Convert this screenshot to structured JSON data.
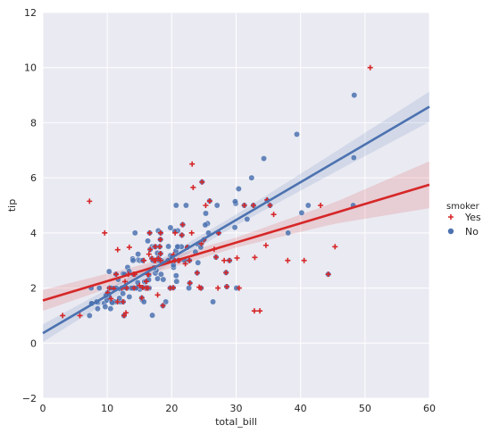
{
  "chart_data": {
    "type": "scatter",
    "title": "",
    "xlabel": "total_bill",
    "ylabel": "tip",
    "xlim": [
      0,
      60
    ],
    "ylim": [
      -2,
      12
    ],
    "xticks": [
      "0",
      "10",
      "20",
      "30",
      "40",
      "50",
      "60"
    ],
    "yticks": [
      "−2",
      "0",
      "2",
      "4",
      "6",
      "8",
      "10",
      "12"
    ],
    "grid": true,
    "background": "#eaeaf2",
    "legend": {
      "title": "smoker",
      "placement": "right",
      "entries": [
        "Yes",
        "No"
      ]
    },
    "series": [
      {
        "name": "Yes",
        "color": "#d62728",
        "marker": "plus",
        "regression": {
          "intercept": 1.55,
          "slope": 0.07,
          "ci_x": [
            0,
            15,
            30,
            45,
            60
          ],
          "ci_halfwidth": [
            0.38,
            0.22,
            0.18,
            0.38,
            0.85
          ]
        },
        "points": [
          [
            3.07,
            1.0
          ],
          [
            5.75,
            1.0
          ],
          [
            7.25,
            5.15
          ],
          [
            9.6,
            4.0
          ],
          [
            10.07,
            1.83
          ],
          [
            10.34,
            2.0
          ],
          [
            10.59,
            1.61
          ],
          [
            11.02,
            1.98
          ],
          [
            11.38,
            2.5
          ],
          [
            11.61,
            3.39
          ],
          [
            12.26,
            2.0
          ],
          [
            12.46,
            1.5
          ],
          [
            12.6,
            1.0
          ],
          [
            12.9,
            1.1
          ],
          [
            13.0,
            2.0
          ],
          [
            13.27,
            2.5
          ],
          [
            13.42,
            3.48
          ],
          [
            14.07,
            2.5
          ],
          [
            14.15,
            2.0
          ],
          [
            15.36,
            1.64
          ],
          [
            15.69,
            3.0
          ],
          [
            16.0,
            2.0
          ],
          [
            16.04,
            2.24
          ],
          [
            16.27,
            2.5
          ],
          [
            16.31,
            2.0
          ],
          [
            16.4,
            2.5
          ],
          [
            16.58,
            4.0
          ],
          [
            16.47,
            3.23
          ],
          [
            16.66,
            3.4
          ],
          [
            16.93,
            3.07
          ],
          [
            17.29,
            3.0
          ],
          [
            17.47,
            3.5
          ],
          [
            17.51,
            3.0
          ],
          [
            17.82,
            1.75
          ],
          [
            17.92,
            3.08
          ],
          [
            18.15,
            3.5
          ],
          [
            18.24,
            3.76
          ],
          [
            18.28,
            4.0
          ],
          [
            18.29,
            3.0
          ],
          [
            19.44,
            3.0
          ],
          [
            19.77,
            2.0
          ],
          [
            20.23,
            2.01
          ],
          [
            20.29,
            3.21
          ],
          [
            20.45,
            3.0
          ],
          [
            20.53,
            4.0
          ],
          [
            21.01,
            3.0
          ],
          [
            21.58,
            3.92
          ],
          [
            22.12,
            2.88
          ],
          [
            22.42,
            3.48
          ],
          [
            22.76,
            3.0
          ],
          [
            23.1,
            4.0
          ],
          [
            23.33,
            5.65
          ],
          [
            23.17,
            6.5
          ],
          [
            24.27,
            2.03
          ],
          [
            24.55,
            2.0
          ],
          [
            24.59,
            3.61
          ],
          [
            25.0,
            3.75
          ],
          [
            25.89,
            5.16
          ],
          [
            26.59,
            3.41
          ],
          [
            27.18,
            2.0
          ],
          [
            28.15,
            3.0
          ],
          [
            28.44,
            2.56
          ],
          [
            28.97,
            3.0
          ],
          [
            30.14,
            3.09
          ],
          [
            30.46,
            2.0
          ],
          [
            32.68,
            5.0
          ],
          [
            32.9,
            3.11
          ],
          [
            34.63,
            3.55
          ],
          [
            34.81,
            5.2
          ],
          [
            35.83,
            4.67
          ],
          [
            38.01,
            3.0
          ],
          [
            40.55,
            3.0
          ],
          [
            43.11,
            5.0
          ],
          [
            45.35,
            3.5
          ],
          [
            50.81,
            10.0
          ],
          [
            44.3,
            2.5
          ],
          [
            25.28,
            5.0
          ],
          [
            33.68,
            1.17
          ],
          [
            15.01,
            2.09
          ],
          [
            24.71,
            5.85
          ],
          [
            27.28,
            4.0
          ],
          [
            14.26,
            2.5
          ],
          [
            11.59,
            1.5
          ],
          [
            18.64,
            1.36
          ],
          [
            15.48,
            2.02
          ],
          [
            18.26,
            3.25
          ],
          [
            21.16,
            3.0
          ],
          [
            22.82,
            2.18
          ],
          [
            23.95,
            2.55
          ],
          [
            32.83,
            1.17
          ],
          [
            35.26,
            5.0
          ],
          [
            12.76,
            2.23
          ],
          [
            28.55,
            2.05
          ],
          [
            26.88,
            3.12
          ],
          [
            31.27,
            5.0
          ],
          [
            21.7,
            4.3
          ]
        ]
      },
      {
        "name": "No",
        "color": "#4c72b0",
        "marker": "circle",
        "regression": {
          "intercept": 0.36,
          "slope": 0.137,
          "ci_x": [
            0,
            15,
            30,
            45,
            60
          ],
          "ci_halfwidth": [
            0.32,
            0.18,
            0.2,
            0.36,
            0.55
          ]
        },
        "points": [
          [
            16.99,
            1.01
          ],
          [
            10.34,
            1.66
          ],
          [
            21.01,
            3.5
          ],
          [
            23.68,
            3.31
          ],
          [
            24.59,
            3.61
          ],
          [
            25.29,
            4.71
          ],
          [
            8.77,
            2.0
          ],
          [
            26.88,
            3.12
          ],
          [
            15.04,
            1.96
          ],
          [
            14.78,
            3.23
          ],
          [
            10.27,
            1.71
          ],
          [
            35.26,
            5.0
          ],
          [
            15.42,
            1.57
          ],
          [
            18.43,
            3.0
          ],
          [
            14.83,
            3.02
          ],
          [
            21.58,
            3.92
          ],
          [
            10.33,
            1.67
          ],
          [
            16.29,
            3.71
          ],
          [
            16.97,
            3.5
          ],
          [
            20.65,
            3.35
          ],
          [
            17.92,
            4.08
          ],
          [
            20.29,
            2.75
          ],
          [
            15.77,
            2.23
          ],
          [
            39.42,
            7.58
          ],
          [
            19.82,
            3.18
          ],
          [
            17.81,
            2.34
          ],
          [
            13.37,
            2.0
          ],
          [
            12.69,
            2.0
          ],
          [
            21.7,
            4.3
          ],
          [
            19.65,
            3.0
          ],
          [
            9.55,
            1.45
          ],
          [
            18.35,
            2.5
          ],
          [
            15.06,
            3.0
          ],
          [
            20.69,
            2.45
          ],
          [
            17.78,
            3.27
          ],
          [
            24.06,
            3.6
          ],
          [
            16.31,
            2.0
          ],
          [
            16.93,
            3.07
          ],
          [
            18.69,
            2.31
          ],
          [
            31.27,
            5.0
          ],
          [
            16.04,
            2.24
          ],
          [
            17.46,
            2.54
          ],
          [
            13.94,
            3.06
          ],
          [
            9.68,
            1.32
          ],
          [
            30.4,
            5.6
          ],
          [
            18.29,
            3.0
          ],
          [
            22.23,
            5.0
          ],
          [
            32.4,
            6.0
          ],
          [
            28.55,
            2.05
          ],
          [
            18.04,
            3.0
          ],
          [
            12.54,
            2.5
          ],
          [
            10.29,
            2.6
          ],
          [
            34.81,
            5.2
          ],
          [
            9.94,
            1.56
          ],
          [
            25.56,
            4.34
          ],
          [
            19.49,
            3.51
          ],
          [
            26.41,
            1.5
          ],
          [
            48.27,
            6.73
          ],
          [
            13.81,
            2.0
          ],
          [
            11.02,
            1.98
          ],
          [
            18.29,
            3.76
          ],
          [
            17.59,
            2.64
          ],
          [
            20.08,
            3.15
          ],
          [
            16.45,
            2.47
          ],
          [
            20.23,
            2.01
          ],
          [
            12.02,
            1.97
          ],
          [
            17.07,
            3.0
          ],
          [
            14.73,
            2.2
          ],
          [
            10.51,
            1.25
          ],
          [
            17.92,
            3.08
          ],
          [
            27.2,
            4.0
          ],
          [
            22.76,
            3.0
          ],
          [
            17.29,
            2.71
          ],
          [
            19.44,
            3.0
          ],
          [
            16.66,
            3.4
          ],
          [
            10.07,
            1.83
          ],
          [
            32.68,
            5.0
          ],
          [
            15.98,
            2.03
          ],
          [
            34.83,
            5.17
          ],
          [
            13.03,
            2.0
          ],
          [
            18.28,
            4.0
          ],
          [
            24.71,
            5.85
          ],
          [
            21.16,
            3.0
          ],
          [
            28.97,
            3.0
          ],
          [
            22.49,
            3.5
          ],
          [
            40.17,
            4.73
          ],
          [
            27.28,
            4.0
          ],
          [
            12.03,
            1.5
          ],
          [
            21.01,
            3.0
          ],
          [
            12.46,
            1.5
          ],
          [
            11.35,
            2.5
          ],
          [
            15.38,
            3.0
          ],
          [
            44.3,
            2.5
          ],
          [
            22.42,
            3.48
          ],
          [
            20.92,
            4.08
          ],
          [
            15.36,
            1.64
          ],
          [
            20.49,
            4.06
          ],
          [
            25.21,
            4.29
          ],
          [
            18.24,
            3.76
          ],
          [
            14.31,
            4.0
          ],
          [
            14.0,
            3.0
          ],
          [
            7.25,
            1.0
          ],
          [
            38.07,
            4.0
          ],
          [
            23.95,
            2.55
          ],
          [
            25.71,
            4.0
          ],
          [
            17.31,
            3.5
          ],
          [
            29.93,
            5.07
          ],
          [
            10.65,
            1.5
          ],
          [
            12.43,
            1.8
          ],
          [
            24.08,
            2.92
          ],
          [
            11.69,
            2.31
          ],
          [
            13.42,
            1.68
          ],
          [
            14.26,
            2.5
          ],
          [
            15.95,
            2.0
          ],
          [
            12.48,
            2.52
          ],
          [
            29.8,
            4.2
          ],
          [
            8.52,
            1.48
          ],
          [
            14.52,
            2.0
          ],
          [
            11.38,
            2.0
          ],
          [
            22.82,
            2.18
          ],
          [
            19.08,
            1.5
          ],
          [
            20.27,
            2.83
          ],
          [
            11.17,
            1.5
          ],
          [
            12.26,
            2.0
          ],
          [
            18.26,
            3.25
          ],
          [
            8.51,
            1.25
          ],
          [
            10.33,
            2.0
          ],
          [
            14.15,
            2.0
          ],
          [
            13.16,
            2.75
          ],
          [
            17.47,
            3.5
          ],
          [
            34.3,
            6.7
          ],
          [
            41.19,
            5.0
          ],
          [
            27.05,
            5.0
          ],
          [
            16.43,
            2.3
          ],
          [
            8.35,
            1.5
          ],
          [
            18.64,
            1.36
          ],
          [
            11.87,
            1.63
          ],
          [
            9.78,
            1.73
          ],
          [
            7.51,
            2.0
          ],
          [
            14.07,
            2.5
          ],
          [
            13.13,
            2.0
          ],
          [
            17.26,
            2.74
          ],
          [
            24.55,
            2.0
          ],
          [
            19.77,
            2.0
          ],
          [
            29.85,
            5.14
          ],
          [
            48.17,
            5.0
          ],
          [
            25.0,
            3.75
          ],
          [
            13.39,
            2.61
          ],
          [
            16.49,
            2.0
          ],
          [
            21.5,
            3.5
          ],
          [
            12.66,
            2.5
          ],
          [
            16.21,
            2.0
          ],
          [
            13.81,
            2.0
          ],
          [
            24.52,
            3.48
          ],
          [
            20.76,
            2.24
          ],
          [
            31.71,
            4.5
          ],
          [
            20.69,
            5.0
          ],
          [
            7.56,
            1.44
          ],
          [
            20.9,
            3.5
          ],
          [
            30.06,
            2.0
          ],
          [
            18.15,
            3.5
          ],
          [
            22.67,
            2.0
          ],
          [
            48.33,
            9.0
          ],
          [
            10.77,
            1.47
          ],
          [
            15.53,
            3.0
          ],
          [
            20.45,
            3.0
          ],
          [
            14.48,
            2.0
          ],
          [
            12.74,
            2.01
          ],
          [
            10.63,
            2.0
          ],
          [
            25.89,
            5.16
          ],
          [
            13.0,
            2.0
          ],
          [
            12.6,
            1.0
          ],
          [
            15.69,
            1.5
          ],
          [
            22.0,
            3.0
          ],
          [
            19.81,
            4.19
          ],
          [
            28.44,
            2.56
          ],
          [
            15.48,
            2.02
          ],
          [
            16.58,
            4.0
          ],
          [
            7.56,
            1.44
          ]
        ]
      }
    ]
  }
}
